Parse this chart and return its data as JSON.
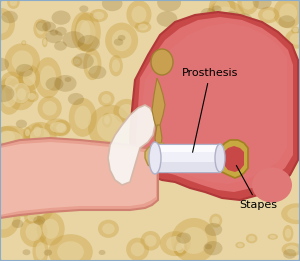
{
  "bg_color": "#e8d5a3",
  "bone_hole_color": "#c8a040",
  "bone_hole_dark": "#8a6820",
  "canal_outer_color": "#e8a090",
  "canal_inner_color": "#f0b8a8",
  "canal_edge_color": "#d08070",
  "middle_ear_dark": "#c84848",
  "middle_ear_light": "#e07070",
  "middle_ear_inner": "#d86060",
  "tympanic_color": "#f5ede8",
  "tympanic_edge": "#d4b8a8",
  "eardrum_white": "#f8f4f0",
  "prosthesis_white": "#f0f0f8",
  "prosthesis_highlight": "#ffffff",
  "prosthesis_shadow": "#d8d8e8",
  "prosthesis_edge": "#b0b0c8",
  "stapes_color": "#c8a840",
  "stapes_dark": "#a08020",
  "malleus_color": "#c8a050",
  "malleus_dark": "#a08030",
  "connector_color": "#d4b870",
  "connector_dark": "#b09040",
  "border_color": "#8aacca",
  "label_prosthesis": "Prosthesis",
  "label_stapes": "Stapes",
  "figsize": [
    3.0,
    2.61
  ],
  "dpi": 100
}
